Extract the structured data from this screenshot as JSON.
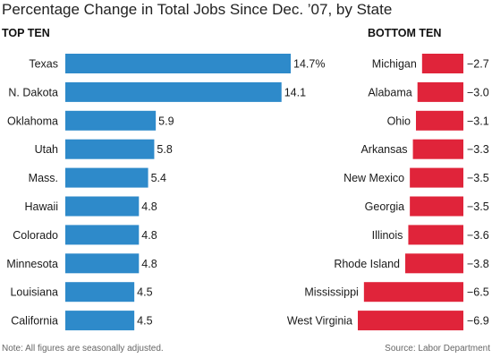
{
  "title": "Percentage Change in Total Jobs Since Dec. ’07, by State",
  "footnote": "Note: All figures are seasonally adjusted.",
  "source": "Source: Labor Department",
  "colors": {
    "top_bar": "#2E8ACA",
    "bottom_bar": "#E0243A"
  },
  "chart_data": [
    {
      "type": "bar",
      "orientation": "horizontal",
      "title": "TOP TEN",
      "categories": [
        "Texas",
        "N. Dakota",
        "Oklahoma",
        "Utah",
        "Mass.",
        "Hawaii",
        "Colorado",
        "Minnesota",
        "Louisiana",
        "California"
      ],
      "values": [
        14.7,
        14.1,
        5.9,
        5.8,
        5.4,
        4.8,
        4.8,
        4.8,
        4.5,
        4.5
      ],
      "labels": [
        "14.7%",
        "14.1",
        "5.9",
        "5.8",
        "5.4",
        "4.8",
        "4.8",
        "4.8",
        "4.5",
        "4.5"
      ],
      "grid": false
    },
    {
      "type": "bar",
      "orientation": "horizontal",
      "title": "BOTTOM TEN",
      "categories": [
        "Michigan",
        "Alabama",
        "Ohio",
        "Arkansas",
        "New Mexico",
        "Georgia",
        "Illinois",
        "Rhode Island",
        "Mississippi",
        "West Virginia"
      ],
      "values": [
        -2.7,
        -3.0,
        -3.1,
        -3.3,
        -3.5,
        -3.5,
        -3.6,
        -3.8,
        -6.5,
        -6.9
      ],
      "labels": [
        "−2.7",
        "−3.0",
        "−3.1",
        "−3.3",
        "−3.5",
        "−3.5",
        "−3.6",
        "−3.8",
        "−6.5",
        "−6.9"
      ],
      "grid": false
    }
  ]
}
